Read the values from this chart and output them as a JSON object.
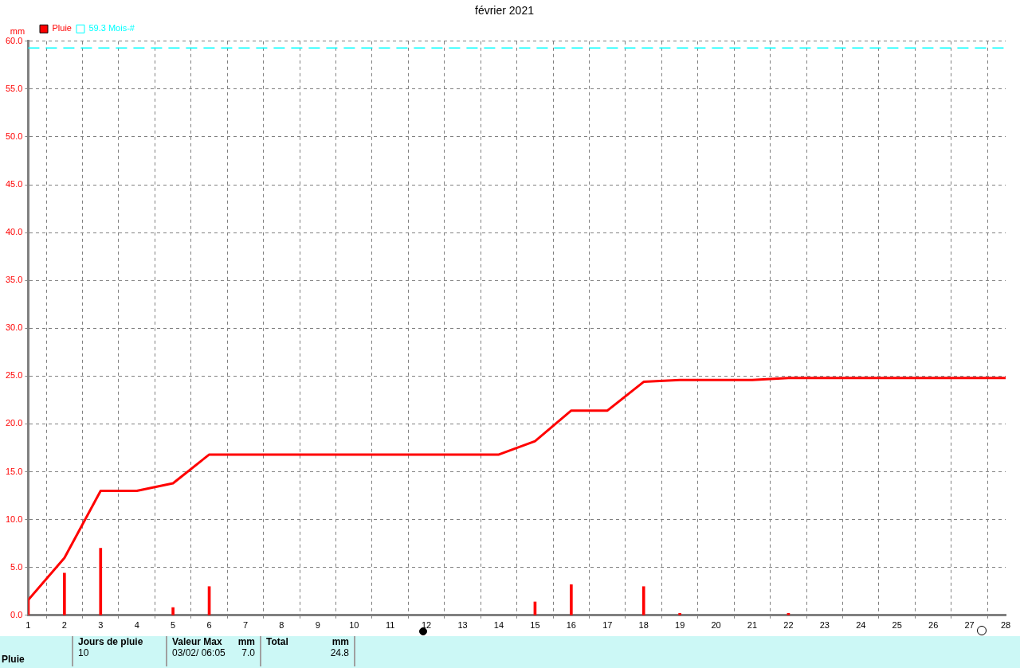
{
  "chart_data": {
    "type": "bar",
    "title": "février 2021",
    "ylabel": "mm",
    "xlim": [
      1,
      28
    ],
    "xticks": [
      1,
      2,
      3,
      4,
      5,
      6,
      7,
      8,
      9,
      10,
      11,
      12,
      13,
      14,
      15,
      16,
      17,
      18,
      19,
      20,
      21,
      22,
      23,
      24,
      25,
      26,
      27,
      28
    ],
    "ylim": [
      0,
      60
    ],
    "yticks": [
      {
        "value": 0,
        "label": "0.0"
      },
      {
        "value": 5,
        "label": "5.0"
      },
      {
        "value": 10,
        "label": "10.0"
      },
      {
        "value": 15,
        "label": "15.0"
      },
      {
        "value": 20,
        "label": "20.0"
      },
      {
        "value": 25,
        "label": "25.0"
      },
      {
        "value": 30,
        "label": "30.0"
      },
      {
        "value": 35,
        "label": "35.0"
      },
      {
        "value": 40,
        "label": "40.0"
      },
      {
        "value": 45,
        "label": "45.0"
      },
      {
        "value": 50,
        "label": "50.0"
      },
      {
        "value": 55,
        "label": "55.0"
      },
      {
        "value": 60,
        "label": "60.0"
      }
    ],
    "grid": true,
    "legend": "top left",
    "series": [
      {
        "name": "Pluie",
        "color": "#ff0000",
        "x": [
          1,
          2,
          3,
          5,
          6,
          15,
          16,
          18,
          19,
          22
        ],
        "values": [
          1.6,
          4.4,
          7.0,
          0.8,
          3.0,
          1.4,
          3.2,
          3.0,
          0.2,
          0.2
        ]
      },
      {
        "type": "line",
        "color": "#ff0000",
        "marker": "none",
        "line_style": "solid",
        "x": [
          1,
          2,
          3,
          4,
          5,
          6,
          7,
          8,
          9,
          10,
          11,
          12,
          13,
          14,
          15,
          16,
          17,
          18,
          19,
          20,
          21,
          22,
          23,
          24,
          25,
          26,
          27,
          28
        ],
        "values": [
          1.6,
          6.0,
          13.0,
          13.0,
          13.8,
          16.8,
          16.8,
          16.8,
          16.8,
          16.8,
          16.8,
          16.8,
          16.8,
          16.8,
          18.2,
          21.4,
          21.4,
          24.4,
          24.6,
          24.6,
          24.6,
          24.8,
          24.8,
          24.8,
          24.8,
          24.8,
          24.8,
          24.8
        ]
      }
    ],
    "ref_lines": [
      {
        "axis": "y",
        "value": 59.3,
        "label": "59.3 Mois-#",
        "color": "#00ffff",
        "line_style": "dashed"
      }
    ],
    "annotations": [
      "Pluie",
      "Jours de pluie",
      "10",
      "Valeur Max",
      "mm",
      "03/02/ 06:05",
      "7.0",
      "Total",
      "mm",
      "24.8"
    ]
  }
}
